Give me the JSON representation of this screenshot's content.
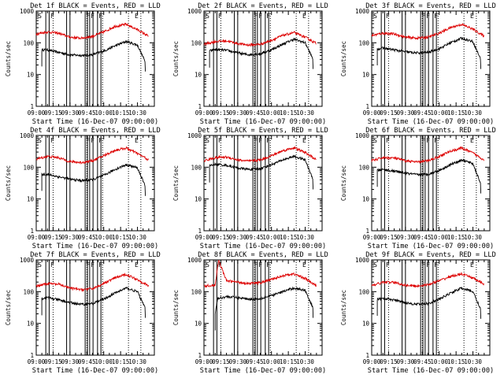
{
  "chart_data": [
    {
      "type": "line",
      "title": "Det 1f BLACK = Events, RED = LLD",
      "xlabel": "Start Time (16-Dec-07 09:00:00)",
      "ylabel": "Counts/sec",
      "x_ticks": [
        "09:00",
        "09:15",
        "09:30",
        "09:45",
        "10:00",
        "10:15",
        "10:30"
      ],
      "y_ticks": [
        "1",
        "10",
        "100",
        "1000"
      ],
      "ylim": [
        1,
        1000
      ],
      "y_scale": "log",
      "series": [
        {
          "color": "#000000",
          "x_minutes": [
            5,
            10,
            20,
            30,
            40,
            50,
            60,
            70,
            80,
            90,
            97
          ],
          "values": [
            60,
            60,
            50,
            42,
            40,
            42,
            55,
            80,
            110,
            85,
            25
          ]
        },
        {
          "color": "#dd0000",
          "x_minutes": [
            0,
            10,
            20,
            30,
            40,
            50,
            60,
            70,
            80,
            90,
            100
          ],
          "values": [
            190,
            220,
            200,
            150,
            140,
            160,
            220,
            330,
            380,
            260,
            160
          ]
        }
      ],
      "region_markers": [
        "S",
        "F",
        "F",
        "F",
        "F",
        "E"
      ]
    },
    {
      "type": "line",
      "title": "Det 2f BLACK = Events, RED = LLD",
      "xlabel": "Start Time (16-Dec-07 09:00:00)",
      "ylabel": "Counts/sec",
      "x_ticks": [
        "09:00",
        "09:15",
        "09:30",
        "09:45",
        "10:00",
        "10:15",
        "10:30"
      ],
      "y_ticks": [
        "1",
        "10",
        "100",
        "1000"
      ],
      "ylim": [
        1,
        1000
      ],
      "y_scale": "log",
      "series": [
        {
          "color": "#000000",
          "x_minutes": [
            5,
            10,
            20,
            30,
            40,
            50,
            60,
            70,
            80,
            90,
            97
          ],
          "values": [
            55,
            62,
            58,
            48,
            42,
            45,
            60,
            90,
            130,
            100,
            30
          ]
        },
        {
          "color": "#dd0000",
          "x_minutes": [
            0,
            10,
            20,
            30,
            40,
            50,
            60,
            70,
            80,
            90,
            100
          ],
          "values": [
            90,
            110,
            115,
            95,
            85,
            90,
            120,
            170,
            210,
            150,
            95
          ]
        }
      ],
      "region_markers": [
        "S",
        "F",
        "F",
        "F",
        "F",
        "E"
      ]
    },
    {
      "type": "line",
      "title": "Det 3f BLACK = Events, RED = LLD",
      "xlabel": "Start Time (16-Dec-07 09:00:00)",
      "ylabel": "Counts/sec",
      "x_ticks": [
        "09:00",
        "09:15",
        "09:30",
        "09:45",
        "10:00",
        "10:15",
        "10:30"
      ],
      "y_ticks": [
        "1",
        "10",
        "100",
        "1000"
      ],
      "ylim": [
        1,
        1000
      ],
      "y_scale": "log",
      "series": [
        {
          "color": "#000000",
          "x_minutes": [
            5,
            10,
            20,
            30,
            40,
            50,
            60,
            70,
            80,
            90,
            97
          ],
          "values": [
            65,
            68,
            60,
            52,
            48,
            50,
            65,
            100,
            140,
            110,
            30
          ]
        },
        {
          "color": "#dd0000",
          "x_minutes": [
            0,
            10,
            20,
            30,
            40,
            50,
            60,
            70,
            80,
            90,
            100
          ],
          "values": [
            170,
            200,
            190,
            150,
            140,
            150,
            200,
            300,
            380,
            270,
            160
          ]
        }
      ],
      "region_markers": [
        "S",
        "F",
        "F",
        "F",
        "F",
        "E"
      ]
    },
    {
      "type": "line",
      "title": "Det 4f BLACK = Events, RED = LLD",
      "xlabel": "Start Time (16-Dec-07 09:00:00)",
      "ylabel": "Counts/sec",
      "x_ticks": [
        "09:00",
        "09:15",
        "09:30",
        "09:45",
        "10:00",
        "10:15",
        "10:30"
      ],
      "y_ticks": [
        "1",
        "10",
        "100",
        "1000"
      ],
      "ylim": [
        1,
        1000
      ],
      "y_scale": "log",
      "series": [
        {
          "color": "#000000",
          "x_minutes": [
            5,
            10,
            20,
            30,
            40,
            50,
            60,
            70,
            80,
            90,
            97
          ],
          "values": [
            60,
            60,
            50,
            42,
            38,
            40,
            55,
            85,
            120,
            95,
            25
          ]
        },
        {
          "color": "#dd0000",
          "x_minutes": [
            0,
            10,
            20,
            30,
            40,
            50,
            60,
            70,
            80,
            90,
            100
          ],
          "values": [
            180,
            220,
            200,
            150,
            140,
            160,
            230,
            340,
            400,
            270,
            170
          ]
        }
      ],
      "region_markers": [
        "S",
        "F",
        "F",
        "F",
        "F",
        "E"
      ]
    },
    {
      "type": "line",
      "title": "Det 5f BLACK = Events, RED = LLD",
      "xlabel": "Start Time (16-Dec-07 09:00:00)",
      "ylabel": "Counts/sec",
      "x_ticks": [
        "09:00",
        "09:15",
        "09:30",
        "09:45",
        "10:00",
        "10:15",
        "10:30"
      ],
      "y_ticks": [
        "1",
        "10",
        "100",
        "1000"
      ],
      "ylim": [
        1,
        1000
      ],
      "y_scale": "log",
      "series": [
        {
          "color": "#000000",
          "x_minutes": [
            5,
            10,
            20,
            30,
            40,
            50,
            60,
            70,
            80,
            90,
            97
          ],
          "values": [
            110,
            125,
            115,
            95,
            85,
            90,
            120,
            170,
            220,
            170,
            40
          ]
        },
        {
          "color": "#dd0000",
          "x_minutes": [
            0,
            10,
            20,
            30,
            40,
            50,
            60,
            70,
            80,
            90,
            100
          ],
          "values": [
            160,
            200,
            210,
            170,
            155,
            170,
            230,
            330,
            410,
            290,
            170
          ]
        }
      ],
      "region_markers": [
        "S",
        "F",
        "F",
        "F",
        "F",
        "E"
      ]
    },
    {
      "type": "line",
      "title": "Det 6f BLACK = Events, RED = LLD",
      "xlabel": "Start Time (16-Dec-07 09:00:00)",
      "ylabel": "Counts/sec",
      "x_ticks": [
        "09:00",
        "09:15",
        "09:30",
        "09:45",
        "10:00",
        "10:15",
        "10:30"
      ],
      "y_ticks": [
        "1",
        "10",
        "100",
        "1000"
      ],
      "ylim": [
        1,
        1000
      ],
      "y_scale": "log",
      "series": [
        {
          "color": "#000000",
          "x_minutes": [
            5,
            10,
            20,
            30,
            40,
            50,
            60,
            70,
            80,
            90,
            97
          ],
          "values": [
            80,
            85,
            75,
            65,
            58,
            60,
            80,
            120,
            170,
            130,
            30
          ]
        },
        {
          "color": "#dd0000",
          "x_minutes": [
            0,
            10,
            20,
            30,
            40,
            50,
            60,
            70,
            80,
            90,
            100
          ],
          "values": [
            160,
            200,
            195,
            160,
            145,
            160,
            220,
            320,
            400,
            280,
            170
          ]
        }
      ],
      "region_markers": [
        "S",
        "F",
        "F",
        "F",
        "F",
        "E"
      ]
    },
    {
      "type": "line",
      "title": "Det 7f BLACK = Events, RED = LLD",
      "xlabel": "Start Time (16-Dec-07 09:00:00)",
      "ylabel": "Counts/sec",
      "x_ticks": [
        "09:00",
        "09:15",
        "09:30",
        "09:45",
        "10:00",
        "10:15",
        "10:30"
      ],
      "y_ticks": [
        "1",
        "10",
        "100",
        "1000"
      ],
      "ylim": [
        1,
        1000
      ],
      "y_scale": "log",
      "series": [
        {
          "color": "#000000",
          "x_minutes": [
            5,
            10,
            20,
            30,
            40,
            50,
            60,
            70,
            80,
            90,
            97
          ],
          "values": [
            60,
            65,
            55,
            45,
            40,
            42,
            58,
            90,
            130,
            100,
            30
          ]
        },
        {
          "color": "#dd0000",
          "x_minutes": [
            0,
            10,
            20,
            30,
            40,
            50,
            60,
            70,
            80,
            90,
            100
          ],
          "values": [
            150,
            180,
            170,
            130,
            115,
            125,
            180,
            270,
            350,
            240,
            150
          ]
        }
      ],
      "region_markers": [
        "S",
        "F",
        "F",
        "F",
        "F",
        "E"
      ]
    },
    {
      "type": "line",
      "title": "Det 8f BLACK = Events, RED = LLD",
      "xlabel": "Start Time (16-Dec-07 09:00:00)",
      "ylabel": "Counts/sec",
      "x_ticks": [
        "09:00",
        "09:15",
        "09:30",
        "09:45",
        "10:00",
        "10:15",
        "10:30"
      ],
      "y_ticks": [
        "1",
        "10",
        "100",
        "1000"
      ],
      "ylim": [
        1,
        1000
      ],
      "y_scale": "log",
      "series": [
        {
          "color": "#000000",
          "x_minutes": [
            10,
            12,
            20,
            30,
            40,
            50,
            60,
            70,
            80,
            90,
            97
          ],
          "values": [
            20,
            60,
            70,
            65,
            58,
            60,
            75,
            100,
            130,
            110,
            30
          ]
        },
        {
          "color": "#dd0000",
          "x_minutes": [
            0,
            10,
            13,
            20,
            30,
            40,
            50,
            60,
            70,
            80,
            90,
            100
          ],
          "values": [
            150,
            160,
            1000,
            220,
            200,
            180,
            190,
            240,
            320,
            360,
            260,
            150
          ]
        }
      ],
      "region_markers": [
        "S",
        "F",
        "F",
        "F",
        "F",
        "E"
      ]
    },
    {
      "type": "line",
      "title": "Det 9f BLACK = Events, RED = LLD",
      "xlabel": "Start Time (16-Dec-07 09:00:00)",
      "ylabel": "Counts/sec",
      "x_ticks": [
        "09:00",
        "09:15",
        "09:30",
        "09:45",
        "10:00",
        "10:15",
        "10:30"
      ],
      "y_ticks": [
        "1",
        "10",
        "100",
        "1000"
      ],
      "ylim": [
        1,
        1000
      ],
      "y_scale": "log",
      "series": [
        {
          "color": "#000000",
          "x_minutes": [
            5,
            10,
            20,
            30,
            40,
            50,
            60,
            70,
            80,
            90,
            97
          ],
          "values": [
            58,
            62,
            55,
            45,
            40,
            42,
            58,
            90,
            130,
            100,
            28
          ]
        },
        {
          "color": "#dd0000",
          "x_minutes": [
            0,
            10,
            20,
            30,
            40,
            50,
            60,
            70,
            80,
            90,
            100
          ],
          "values": [
            150,
            200,
            195,
            160,
            150,
            165,
            220,
            300,
            360,
            270,
            170
          ]
        }
      ],
      "region_markers": [
        "S",
        "F",
        "F",
        "F",
        "F",
        "E"
      ]
    }
  ]
}
